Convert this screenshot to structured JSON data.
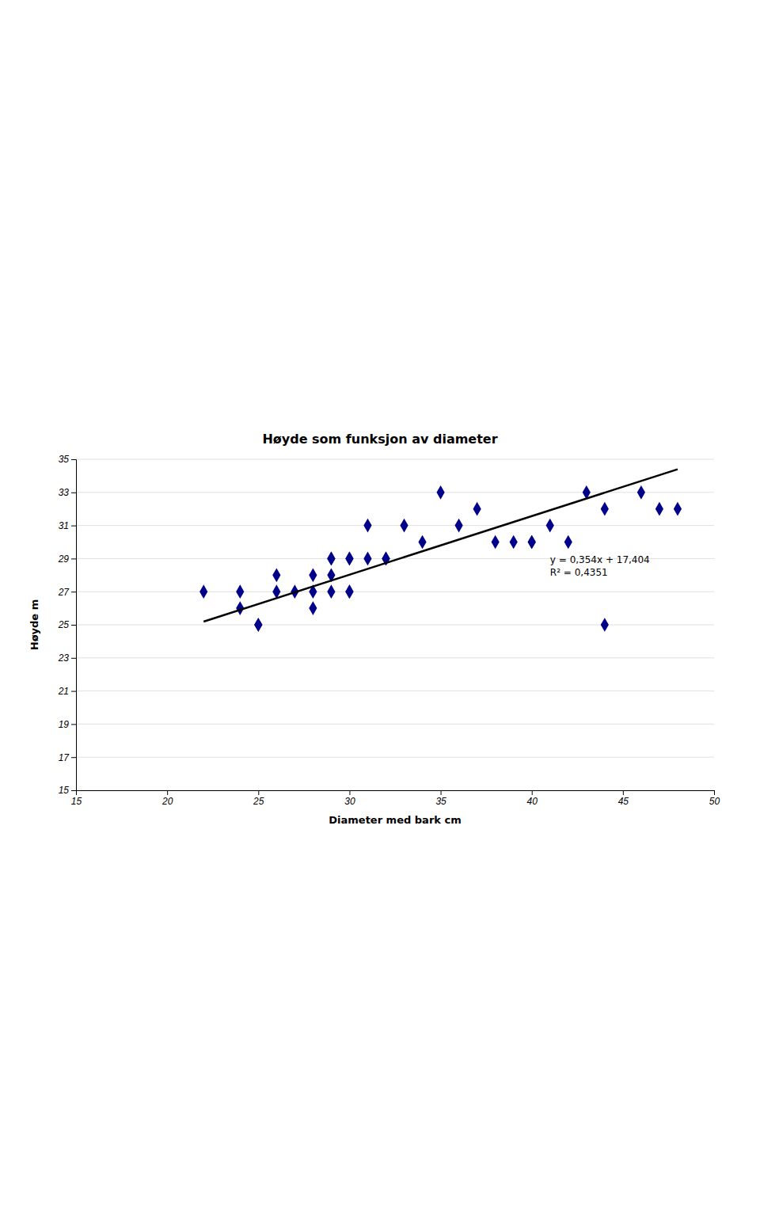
{
  "chart_data": {
    "type": "scatter",
    "title": "Høyde som funksjon av diameter",
    "xlabel": "Diameter med bark cm",
    "ylabel": "Høyde m",
    "annotations": [
      "y = 0,354x + 17,404",
      "R² = 0,4351"
    ],
    "xlim": [
      15,
      50
    ],
    "ylim": [
      15,
      35
    ],
    "xticks": [
      15,
      20,
      25,
      30,
      35,
      40,
      45,
      50
    ],
    "yticks": [
      15,
      17,
      19,
      21,
      23,
      25,
      27,
      29,
      31,
      33,
      35
    ],
    "grid": "y",
    "series": [
      {
        "type": "scatter",
        "color": "#00008B",
        "marker": "diamond",
        "x": [
          22,
          24,
          24,
          25,
          25,
          26,
          26,
          27,
          28,
          28,
          28,
          29,
          29,
          29,
          29,
          30,
          30,
          30,
          30,
          31,
          31,
          32,
          32,
          33,
          34,
          35,
          36,
          37,
          38,
          39,
          40,
          40,
          41,
          42,
          43,
          44,
          44,
          46,
          47,
          48
        ],
        "values": [
          27,
          26,
          27,
          25,
          25,
          27,
          28,
          27,
          26,
          27,
          28,
          27,
          28,
          29,
          29,
          27,
          27,
          29,
          29,
          29,
          31,
          29,
          29,
          31,
          30,
          33,
          31,
          32,
          30,
          30,
          30,
          30,
          31,
          30,
          33,
          32,
          25,
          33,
          32,
          32
        ]
      },
      {
        "type": "line",
        "color": "#000000",
        "x": [
          22,
          48
        ],
        "values": [
          25.192,
          34.396
        ]
      }
    ]
  }
}
